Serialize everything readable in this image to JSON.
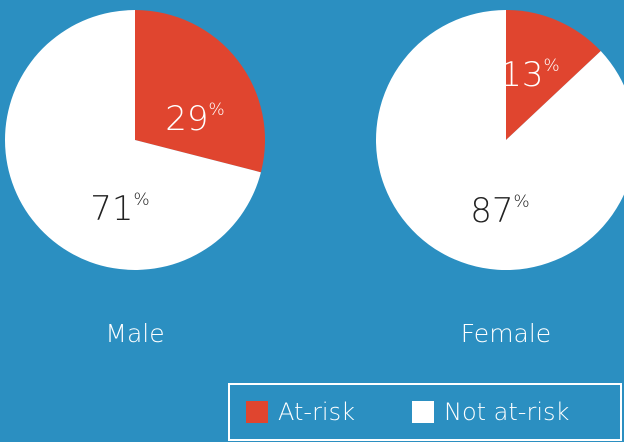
{
  "chart_data": [
    {
      "type": "pie",
      "title": "Male",
      "categories": [
        "At-risk",
        "Not at-risk"
      ],
      "values": [
        29,
        71
      ],
      "colors": [
        "#e0452f",
        "#ffffff"
      ],
      "value_suffix": "%"
    },
    {
      "type": "pie",
      "title": "Female",
      "categories": [
        "At-risk",
        "Not at-risk"
      ],
      "values": [
        13,
        87
      ],
      "colors": [
        "#e0452f",
        "#ffffff"
      ],
      "value_suffix": "%"
    }
  ]
}
